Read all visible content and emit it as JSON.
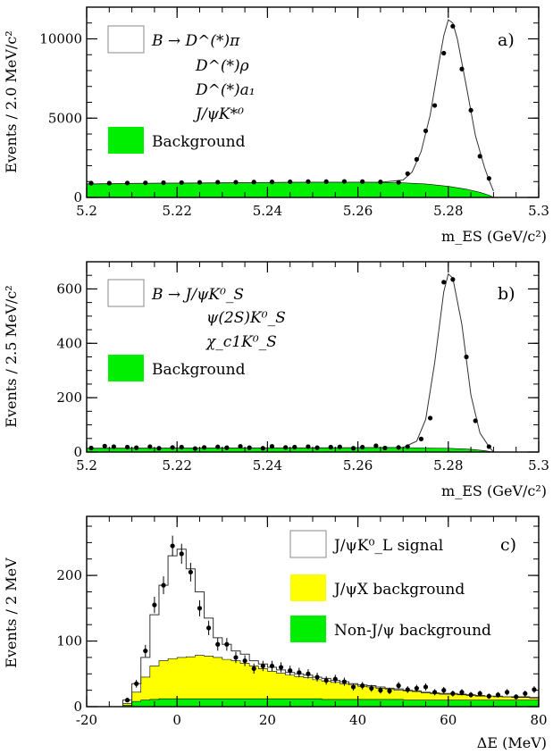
{
  "chart_data": [
    {
      "type": "line",
      "panel_label": "a)",
      "xlabel": "m_ES (GeV/c²)",
      "ylabel": "Events / 2.0 MeV/c²",
      "xlim": [
        5.2,
        5.3
      ],
      "ylim": [
        0,
        12000
      ],
      "x_ticks": [
        "5.2",
        "5.22",
        "5.24",
        "5.26",
        "5.28",
        "5.3"
      ],
      "y_ticks": [
        "0",
        "5000",
        "10000"
      ],
      "legend": {
        "placement": "top-left",
        "entries": [
          {
            "label": "B → D^(*)π",
            "style": "open-box"
          },
          {
            "label": "D^(*)ρ",
            "style": "continuation"
          },
          {
            "label": "D^(*)a₁",
            "style": "continuation"
          },
          {
            "label": "J/ψK*⁰",
            "style": "continuation"
          },
          {
            "label": "Background",
            "style": "filled-box",
            "color": "#00ee00"
          }
        ]
      },
      "series": [
        {
          "role": "data_points",
          "x": [
            5.201,
            5.205,
            5.209,
            5.213,
            5.217,
            5.221,
            5.225,
            5.229,
            5.233,
            5.237,
            5.241,
            5.245,
            5.249,
            5.253,
            5.257,
            5.261,
            5.265,
            5.269,
            5.271,
            5.273,
            5.275,
            5.277,
            5.279,
            5.281,
            5.283,
            5.285,
            5.287,
            5.289
          ],
          "y": [
            900,
            900,
            910,
            920,
            930,
            940,
            950,
            960,
            960,
            970,
            980,
            990,
            1000,
            1000,
            1010,
            1000,
            980,
            950,
            1500,
            2400,
            4200,
            5800,
            9100,
            10800,
            8100,
            5500,
            2600,
            1200
          ]
        },
        {
          "role": "total_fit",
          "x": [
            5.2,
            5.21,
            5.22,
            5.23,
            5.24,
            5.25,
            5.26,
            5.265,
            5.27,
            5.272,
            5.274,
            5.276,
            5.278,
            5.279,
            5.28,
            5.281,
            5.282,
            5.284,
            5.286,
            5.288,
            5.289,
            5.29
          ],
          "y": [
            850,
            880,
            900,
            920,
            940,
            960,
            960,
            950,
            1100,
            1600,
            2900,
            5200,
            8600,
            10200,
            11200,
            11000,
            10000,
            7000,
            3900,
            1900,
            1100,
            400
          ]
        },
        {
          "role": "background",
          "color": "#00ee00",
          "x": [
            5.2,
            5.21,
            5.22,
            5.23,
            5.24,
            5.25,
            5.26,
            5.27,
            5.275,
            5.28,
            5.284,
            5.287,
            5.289,
            5.29
          ],
          "y": [
            850,
            880,
            900,
            920,
            940,
            960,
            960,
            920,
            850,
            700,
            520,
            320,
            140,
            0
          ]
        }
      ]
    },
    {
      "type": "line",
      "panel_label": "b)",
      "xlabel": "m_ES (GeV/c²)",
      "ylabel": "Events / 2.5 MeV/c²",
      "xlim": [
        5.2,
        5.3
      ],
      "ylim": [
        0,
        700
      ],
      "x_ticks": [
        "5.2",
        "5.22",
        "5.24",
        "5.26",
        "5.28",
        "5.3"
      ],
      "y_ticks": [
        "0",
        "200",
        "400",
        "600"
      ],
      "legend": {
        "placement": "top-left",
        "entries": [
          {
            "label": "B → J/ψK⁰_S",
            "style": "open-box"
          },
          {
            "label": "ψ(2S)K⁰_S",
            "style": "continuation"
          },
          {
            "label": "χ_c1K⁰_S",
            "style": "continuation"
          },
          {
            "label": "Background",
            "style": "filled-box",
            "color": "#00ee00"
          }
        ]
      },
      "series": [
        {
          "role": "data_points",
          "x": [
            5.201,
            5.204,
            5.206,
            5.209,
            5.211,
            5.214,
            5.216,
            5.219,
            5.221,
            5.224,
            5.226,
            5.229,
            5.231,
            5.234,
            5.236,
            5.239,
            5.241,
            5.244,
            5.246,
            5.249,
            5.251,
            5.254,
            5.256,
            5.259,
            5.261,
            5.264,
            5.266,
            5.269,
            5.271,
            5.274,
            5.276,
            5.279,
            5.281,
            5.284,
            5.286,
            5.289
          ],
          "y": [
            15,
            22,
            20,
            18,
            16,
            20,
            14,
            17,
            18,
            13,
            17,
            19,
            16,
            21,
            16,
            14,
            21,
            17,
            18,
            20,
            16,
            18,
            19,
            14,
            18,
            23,
            15,
            17,
            20,
            48,
            125,
            625,
            635,
            350,
            115,
            20
          ]
        },
        {
          "role": "total_fit",
          "x": [
            5.2,
            5.25,
            5.27,
            5.273,
            5.275,
            5.277,
            5.279,
            5.28,
            5.281,
            5.283,
            5.285,
            5.287,
            5.289,
            5.29
          ],
          "y": [
            14,
            15,
            17,
            40,
            120,
            330,
            590,
            655,
            640,
            470,
            210,
            70,
            20,
            0
          ]
        },
        {
          "role": "background",
          "color": "#00ee00",
          "x": [
            5.2,
            5.25,
            5.27,
            5.28,
            5.285,
            5.288,
            5.29
          ],
          "y": [
            14,
            15,
            16,
            14,
            10,
            5,
            0
          ]
        }
      ]
    },
    {
      "type": "area",
      "panel_label": "c)",
      "xlabel": "ΔE (MeV)",
      "ylabel": "Events / 2 MeV",
      "xlim": [
        -20,
        80
      ],
      "ylim": [
        0,
        290
      ],
      "x_ticks": [
        "-20",
        "0",
        "20",
        "40",
        "60",
        "80"
      ],
      "y_ticks": [
        "0",
        "100",
        "200"
      ],
      "legend": {
        "placement": "top-right",
        "entries": [
          {
            "label": "J/ψK⁰_L signal",
            "style": "open-box"
          },
          {
            "label": "J/ψX background",
            "style": "filled-box",
            "color": "#ffff00"
          },
          {
            "label": "Non-J/ψ background",
            "style": "filled-box",
            "color": "#00ee00"
          }
        ]
      },
      "bin_edges": [
        -12,
        -10,
        -8,
        -6,
        -4,
        -2,
        0,
        2,
        4,
        6,
        8,
        10,
        12,
        14,
        16,
        18,
        20,
        22,
        24,
        26,
        28,
        30,
        32,
        34,
        36,
        38,
        40,
        42,
        44,
        46,
        48,
        50,
        52,
        54,
        56,
        58,
        60,
        62,
        64,
        66,
        68,
        70,
        72,
        74,
        76,
        78,
        80
      ],
      "series": [
        {
          "role": "total_fit",
          "values": [
            10,
            35,
            75,
            140,
            185,
            230,
            240,
            210,
            175,
            135,
            105,
            95,
            85,
            80,
            70,
            65,
            60,
            56,
            52,
            50,
            48,
            45,
            43,
            40,
            38,
            35,
            33,
            32,
            30,
            28,
            27,
            25,
            24,
            22,
            21,
            20,
            20,
            19,
            18,
            17,
            16,
            16,
            15,
            15,
            15,
            14
          ]
        },
        {
          "role": "j_psi_x_background",
          "color": "#ffff00",
          "values": [
            5,
            22,
            45,
            62,
            70,
            73,
            75,
            76,
            78,
            77,
            75,
            72,
            70,
            66,
            62,
            58,
            54,
            51,
            48,
            46,
            44,
            41,
            39,
            37,
            35,
            33,
            31,
            30,
            28,
            27,
            25,
            24,
            23,
            21,
            20,
            19,
            19,
            18,
            17,
            16,
            16,
            15,
            15,
            14,
            14,
            13
          ]
        },
        {
          "role": "non_j_psi_background",
          "color": "#00ee00",
          "values": [
            2,
            8,
            10,
            11,
            12,
            12,
            12,
            12,
            12,
            12,
            12,
            12,
            12,
            12,
            12,
            12,
            12,
            12,
            12,
            12,
            12,
            12,
            11,
            11,
            11,
            11,
            11,
            11,
            11,
            11,
            11,
            10,
            10,
            10,
            10,
            10,
            10,
            10,
            10,
            10,
            10,
            10,
            10,
            10,
            10,
            10
          ]
        },
        {
          "role": "data_points",
          "x": [
            -11,
            -9,
            -7,
            -5,
            -3,
            -1,
            1,
            3,
            5,
            7,
            9,
            11,
            13,
            15,
            17,
            19,
            21,
            23,
            25,
            27,
            29,
            31,
            33,
            35,
            37,
            39,
            41,
            43,
            45,
            47,
            49,
            51,
            53,
            55,
            57,
            59,
            61,
            63,
            65,
            67,
            69,
            71,
            73,
            75,
            77,
            79
          ],
          "y": [
            10,
            35,
            85,
            155,
            185,
            245,
            233,
            205,
            150,
            120,
            95,
            95,
            75,
            70,
            58,
            62,
            62,
            60,
            55,
            52,
            50,
            45,
            40,
            42,
            38,
            30,
            32,
            28,
            25,
            24,
            32,
            26,
            28,
            30,
            22,
            25,
            20,
            22,
            18,
            20,
            16,
            18,
            22,
            15,
            20,
            26
          ]
        }
      ]
    }
  ]
}
